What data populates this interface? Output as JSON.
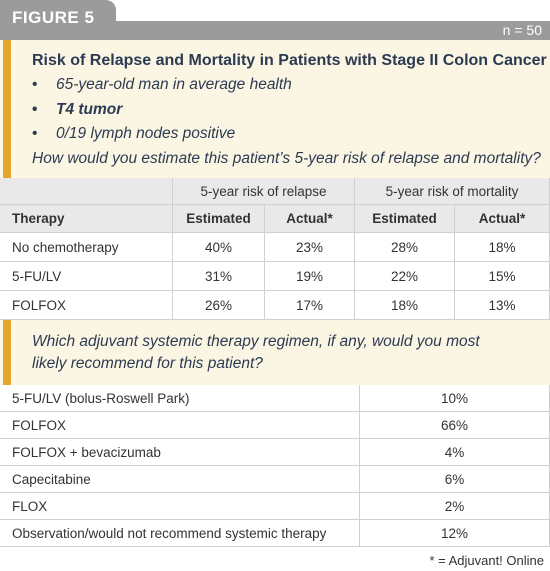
{
  "figure_label": "FIGURE 5",
  "n_label": "n = 50",
  "case": {
    "title": "Risk of Relapse and Mortality in Patients with Stage II Colon Cancer",
    "bullets": [
      "65-year-old man in average health",
      "T4 tumor",
      "0/19 lymph nodes positive"
    ],
    "question": "How would you estimate this patient’s 5-year risk of relapse and mortality?"
  },
  "table1": {
    "group_headers": [
      "5-year risk of relapse",
      "5-year risk of mortality"
    ],
    "column_headers": [
      "Therapy",
      "Estimated",
      "Actual*",
      "Estimated",
      "Actual*"
    ],
    "rows": [
      [
        "No chemotherapy",
        "40%",
        "23%",
        "28%",
        "18%"
      ],
      [
        "5-FU/LV",
        "31%",
        "19%",
        "22%",
        "15%"
      ],
      [
        "FOLFOX",
        "26%",
        "17%",
        "18%",
        "13%"
      ]
    ]
  },
  "question2": "Which adjuvant systemic therapy regimen, if any, would you most likely recommend for this patient?",
  "table2": {
    "rows": [
      [
        "5-FU/LV (bolus-Roswell Park)",
        "10%"
      ],
      [
        "FOLFOX",
        "66%"
      ],
      [
        "FOLFOX + bevacizumab",
        "4%"
      ],
      [
        "Capecitabine",
        "6%"
      ],
      [
        "FLOX",
        "2%"
      ],
      [
        "Observation/would not recommend systemic therapy",
        "12%"
      ]
    ]
  },
  "footnote": "* = Adjuvant! Online"
}
